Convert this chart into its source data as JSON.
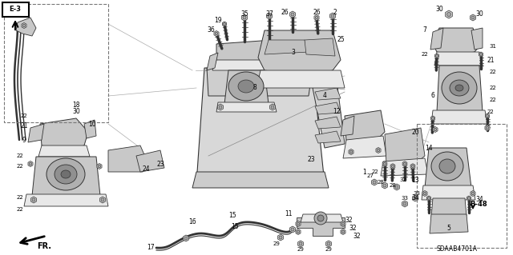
{
  "fig_width": 6.4,
  "fig_height": 3.19,
  "dpi": 100,
  "bg": "#ffffff",
  "diagram_code": "SDAAB4701A",
  "ref_b48": "B-48",
  "fr_label": "FR.",
  "gray_light": "#e8e8e8",
  "gray_mid": "#c8c8c8",
  "gray_dark": "#888888",
  "line_color": "#333333",
  "dash_color": "#777777"
}
